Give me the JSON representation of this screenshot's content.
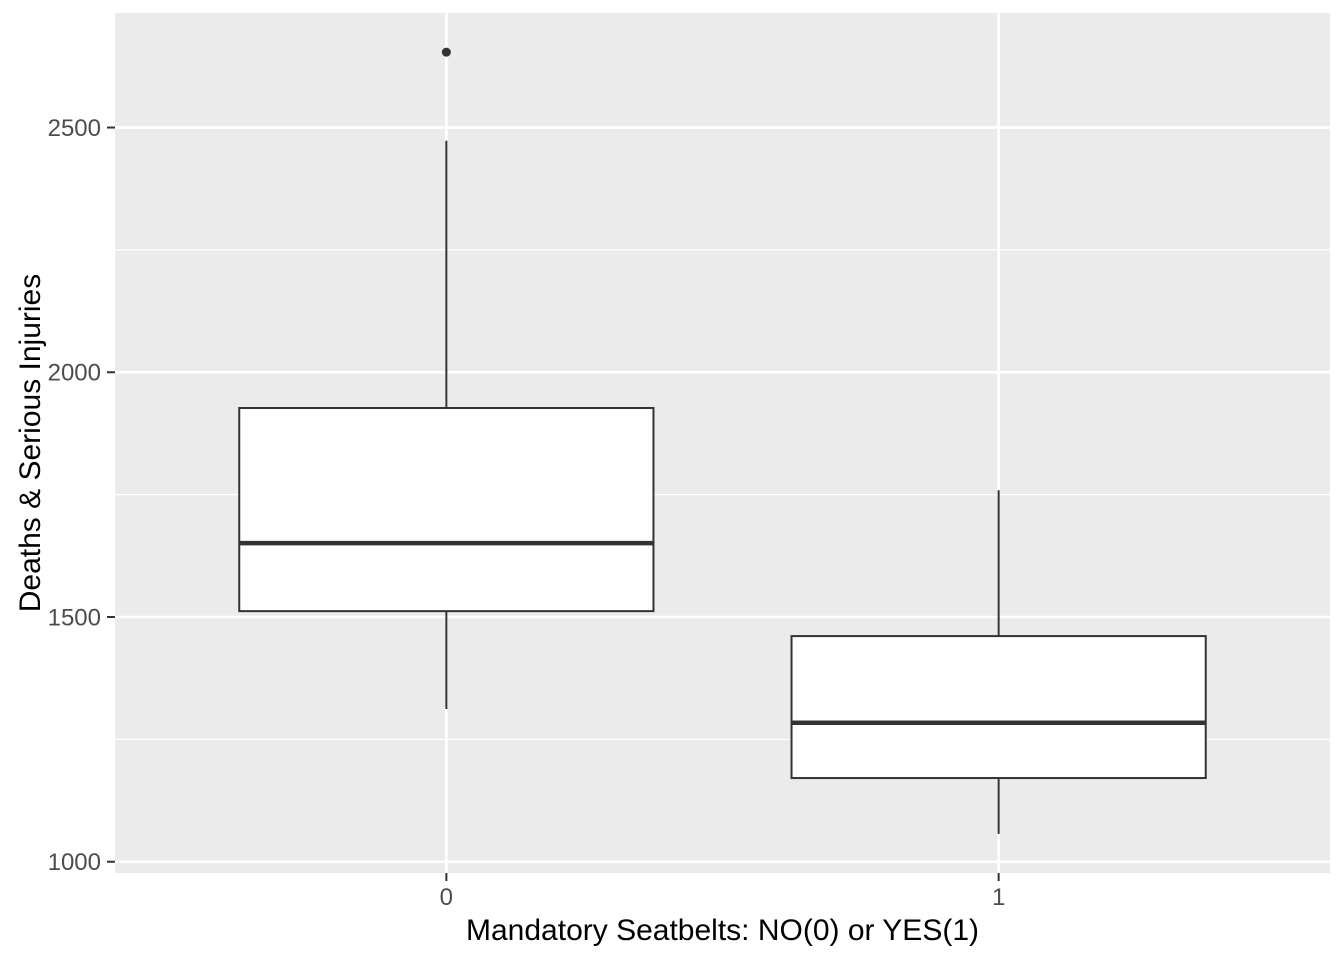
{
  "chart_data": {
    "type": "boxplot",
    "title": "",
    "xlabel": "Mandatory Seatbelts: NO(0) or YES(1)",
    "ylabel": "Deaths & Serious Injuries",
    "categories": [
      "0",
      "1"
    ],
    "ylim": [
      977,
      2734
    ],
    "x_domain": [
      0.4,
      2.6
    ],
    "y_major_ticks": [
      1000,
      1500,
      2000,
      2500
    ],
    "y_minor_gridlines": [
      1250,
      1750,
      2250
    ],
    "grid": "horizontal major+minor, vertical major at each category",
    "legend_position": "none",
    "box_width_fraction": 0.75,
    "series": [
      {
        "category": "0",
        "whisker_low": 1312,
        "q1": 1512,
        "median": 1651,
        "q3": 1927,
        "whisker_high": 2473,
        "outliers": [
          2654
        ]
      },
      {
        "category": "1",
        "whisker_low": 1057,
        "q1": 1171,
        "median": 1284,
        "q3": 1461,
        "whisker_high": 1759,
        "outliers": []
      }
    ]
  },
  "style": {
    "panel_bg": "#EBEBEB",
    "grid_color": "#FFFFFF",
    "box_fill": "#FFFFFF",
    "box_stroke": "#333333",
    "tick_mark_color": "#333333",
    "tick_label_color": "#4D4D4D",
    "axis_title_color": "#000000",
    "outer_bg": "#FFFFFF"
  }
}
